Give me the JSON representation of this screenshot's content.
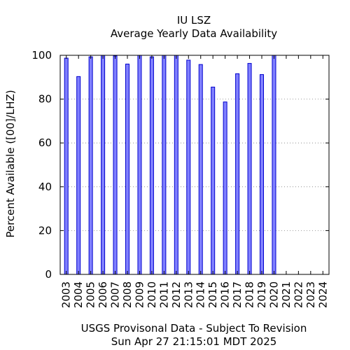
{
  "chart_data": {
    "type": "bar",
    "title": "IU LSZ",
    "subtitle": "Average Yearly Data Availability",
    "ylabel": "Percent Available ([00]/LHZ)",
    "xlabel": "USGS Provisonal Data - Subject To Revision",
    "timestamp": "Sun Apr 27 21:15:01 MDT 2025",
    "ylim": [
      0,
      100
    ],
    "yticks": [
      0,
      20,
      40,
      60,
      80,
      100
    ],
    "grid": true,
    "categories": [
      "2003",
      "2004",
      "2005",
      "2006",
      "2007",
      "2008",
      "2009",
      "2010",
      "2011",
      "2012",
      "2013",
      "2014",
      "2015",
      "2016",
      "2017",
      "2018",
      "2019",
      "2020",
      "2021",
      "2022",
      "2023",
      "2024"
    ],
    "values": [
      98.7,
      90.3,
      99.3,
      100,
      99.7,
      96,
      100,
      99.3,
      100,
      100,
      97.8,
      95.8,
      85.5,
      78.7,
      91.6,
      96.3,
      91.2,
      100,
      0,
      0,
      0,
      0
    ],
    "bar_color": "#8080ff",
    "bar_edge_color": "#0000cc"
  }
}
